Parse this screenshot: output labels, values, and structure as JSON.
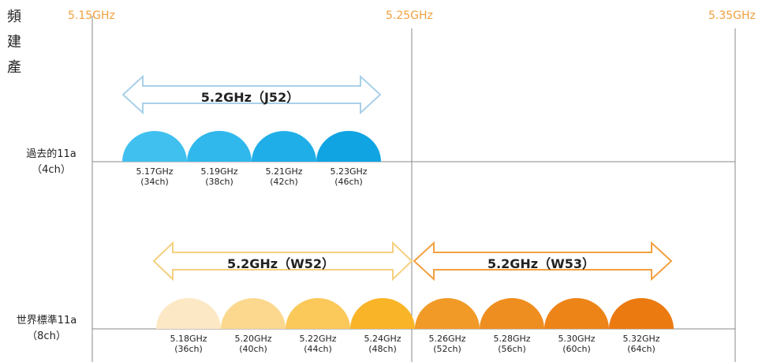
{
  "side_label": [
    "頻",
    "建",
    "產"
  ],
  "top_freqs": [
    "5.15GHz",
    "5.25GHz",
    "5.35GHz"
  ],
  "rows": {
    "old": {
      "label_line1": "過去的11a",
      "label_line2": "（4ch）"
    },
    "new": {
      "label_line1": "世界標準11a",
      "label_line2": "（8ch）"
    }
  },
  "bands": {
    "j52": "5.2GHz（J52）",
    "w52": "5.2GHz（W52）",
    "w53": "5.2GHz（W53）"
  },
  "old_channels": [
    {
      "freq": "5.17GHz",
      "ch": "(34ch)",
      "color": "#40c0ef"
    },
    {
      "freq": "5.19GHz",
      "ch": "(38ch)",
      "color": "#30b8ec"
    },
    {
      "freq": "5.21GHz",
      "ch": "(42ch)",
      "color": "#20aee8"
    },
    {
      "freq": "5.23GHz",
      "ch": "(46ch)",
      "color": "#10a4e3"
    }
  ],
  "new_channels": [
    {
      "freq": "5.18GHz",
      "ch": "(36ch)",
      "color": "#fce8c4"
    },
    {
      "freq": "5.20GHz",
      "ch": "(40ch)",
      "color": "#fbd88e"
    },
    {
      "freq": "5.22GHz",
      "ch": "(44ch)",
      "color": "#fbc85a"
    },
    {
      "freq": "5.24GHz",
      "ch": "(48ch)",
      "color": "#f9b428"
    },
    {
      "freq": "5.26GHz",
      "ch": "(52ch)",
      "color": "#f19a28"
    },
    {
      "freq": "5.28GHz",
      "ch": "(56ch)",
      "color": "#ef8e20"
    },
    {
      "freq": "5.30GHz",
      "ch": "(60ch)",
      "color": "#ed8418"
    },
    {
      "freq": "5.32GHz",
      "ch": "(64ch)",
      "color": "#eb7a10"
    }
  ],
  "colors": {
    "accent": "#f0a040",
    "j52_arrow": "#a8d0e8",
    "w52_arrow": "#f5d080",
    "w53_arrow": "#f2a040",
    "grid": "#888888"
  }
}
